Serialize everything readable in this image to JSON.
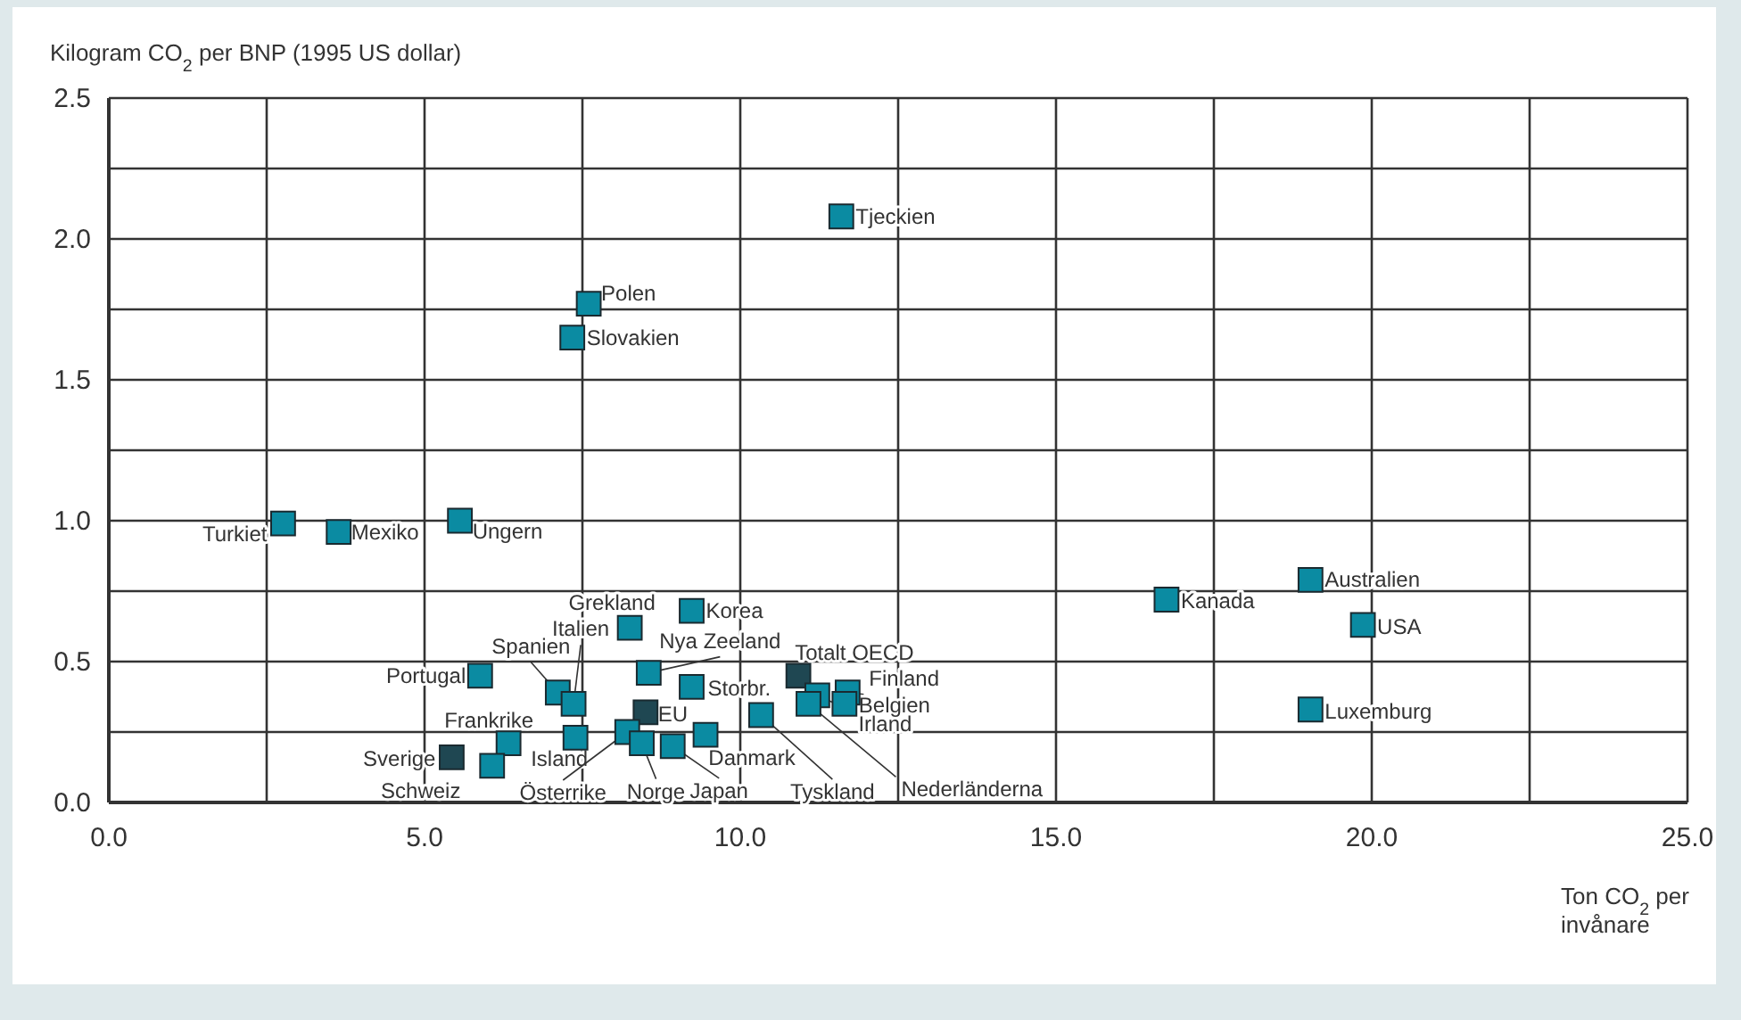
{
  "chart_data": {
    "type": "scatter",
    "ylabel": "Kilogram CO$_{2}$ per BNP (1995 US dollar)",
    "xlabel": "Ton CO$_{2}$ per invånare",
    "x": [
      2.76,
      3.64,
      5.56,
      5.88,
      7.11,
      7.36,
      8.25,
      9.23,
      8.55,
      9.23,
      8.5,
      6.33,
      5.43,
      6.07,
      7.39,
      8.21,
      8.44,
      8.93,
      9.45,
      10.33,
      10.92,
      11.7,
      11.65,
      11.22,
      11.08,
      11.6,
      7.6,
      7.34,
      16.75,
      19.03,
      19.86,
      19.03
    ],
    "values": [
      0.99,
      0.96,
      1.0,
      0.45,
      0.39,
      0.35,
      0.62,
      0.68,
      0.46,
      0.41,
      0.32,
      0.21,
      0.16,
      0.13,
      0.23,
      0.25,
      0.21,
      0.2,
      0.24,
      0.31,
      0.45,
      0.39,
      0.35,
      0.38,
      0.35,
      2.08,
      1.77,
      1.65,
      0.72,
      0.79,
      0.63,
      0.33
    ],
    "colors": [
      "#0b8ba2",
      "#0b8ba2",
      "#0b8ba2",
      "#0b8ba2",
      "#0b8ba2",
      "#0b8ba2",
      "#0b8ba2",
      "#0b8ba2",
      "#0b8ba2",
      "#0b8ba2",
      "#1f4752",
      "#0b8ba2",
      "#1f4752",
      "#0b8ba2",
      "#0b8ba2",
      "#0b8ba2",
      "#0b8ba2",
      "#0b8ba2",
      "#0b8ba2",
      "#0b8ba2",
      "#1f4752",
      "#0b8ba2",
      "#0b8ba2",
      "#0b8ba2",
      "#0b8ba2",
      "#0b8ba2",
      "#0b8ba2",
      "#0b8ba2",
      "#0b8ba2",
      "#0b8ba2",
      "#0b8ba2",
      "#0b8ba2"
    ],
    "marker": "square",
    "xlim": [
      0,
      25
    ],
    "ylim": [
      0,
      2.5
    ],
    "xticks": [
      {
        "value": 0,
        "label": "0.0"
      },
      {
        "value": 2.5,
        "label": null
      },
      {
        "value": 5,
        "label": "5.0"
      },
      {
        "value": 7.5,
        "label": null
      },
      {
        "value": 10,
        "label": "10.0"
      },
      {
        "value": 12.5,
        "label": null
      },
      {
        "value": 15,
        "label": "15.0"
      },
      {
        "value": 17.5,
        "label": null
      },
      {
        "value": 20,
        "label": "20.0"
      },
      {
        "value": 22.5,
        "label": null
      },
      {
        "value": 25,
        "label": "25.0"
      }
    ],
    "yticks": [
      {
        "value": 0,
        "label": "0.0"
      },
      {
        "value": 0.25,
        "label": null
      },
      {
        "value": 0.5,
        "label": "0.5"
      },
      {
        "value": 0.75,
        "label": null
      },
      {
        "value": 1,
        "label": "1.0"
      },
      {
        "value": 1.25,
        "label": null
      },
      {
        "value": 1.5,
        "label": "1.5"
      },
      {
        "value": 1.75,
        "label": null
      },
      {
        "value": 2,
        "label": "2.0"
      },
      {
        "value": 2.25,
        "label": null
      },
      {
        "value": 2.5,
        "label": "2.5"
      }
    ],
    "grid": true,
    "annotations": [
      {
        "text": "Turkiet",
        "x": 2.76,
        "y": 0.99
      },
      {
        "text": "Mexiko",
        "x": 3.64,
        "y": 0.96
      },
      {
        "text": "Ungern",
        "x": 5.56,
        "y": 1.0
      },
      {
        "text": "Portugal",
        "x": 5.88,
        "y": 0.45
      },
      {
        "text": "Spanien",
        "x": 7.11,
        "y": 0.39
      },
      {
        "text": "Italien",
        "x": 7.36,
        "y": 0.35
      },
      {
        "text": "Grekland",
        "x": 8.25,
        "y": 0.62
      },
      {
        "text": "Korea",
        "x": 9.23,
        "y": 0.68
      },
      {
        "text": "Nya Zeeland",
        "x": 8.55,
        "y": 0.46
      },
      {
        "text": "Storbr.",
        "x": 9.23,
        "y": 0.41
      },
      {
        "text": "EU",
        "x": 8.5,
        "y": 0.32
      },
      {
        "text": "Frankrike",
        "x": 6.33,
        "y": 0.21
      },
      {
        "text": "Sverige",
        "x": 5.43,
        "y": 0.16
      },
      {
        "text": "Schweiz",
        "x": 6.07,
        "y": 0.13
      },
      {
        "text": "Island",
        "x": 7.39,
        "y": 0.23
      },
      {
        "text": "Österrike",
        "x": 8.21,
        "y": 0.25
      },
      {
        "text": "Norge",
        "x": 8.44,
        "y": 0.21
      },
      {
        "text": "Japan",
        "x": 8.93,
        "y": 0.2
      },
      {
        "text": "Danmark",
        "x": 9.45,
        "y": 0.24
      },
      {
        "text": "Tyskland",
        "x": 10.33,
        "y": 0.31
      },
      {
        "text": "Totalt OECD",
        "x": 10.92,
        "y": 0.45
      },
      {
        "text": "Finland",
        "x": 11.7,
        "y": 0.39
      },
      {
        "text": "Belgien",
        "x": 11.65,
        "y": 0.35
      },
      {
        "text": "Irland",
        "x": 11.22,
        "y": 0.38
      },
      {
        "text": "Nederländerna",
        "x": 11.08,
        "y": 0.35
      },
      {
        "text": "Tjeckien",
        "x": 11.6,
        "y": 2.08
      },
      {
        "text": "Polen",
        "x": 7.6,
        "y": 1.77
      },
      {
        "text": "Slovakien",
        "x": 7.34,
        "y": 1.65
      },
      {
        "text": "Kanada",
        "x": 16.75,
        "y": 0.72
      },
      {
        "text": "Australien",
        "x": 19.03,
        "y": 0.79
      },
      {
        "text": "USA",
        "x": 19.86,
        "y": 0.63
      },
      {
        "text": "Luxemburg",
        "x": 19.03,
        "y": 0.33
      }
    ]
  }
}
